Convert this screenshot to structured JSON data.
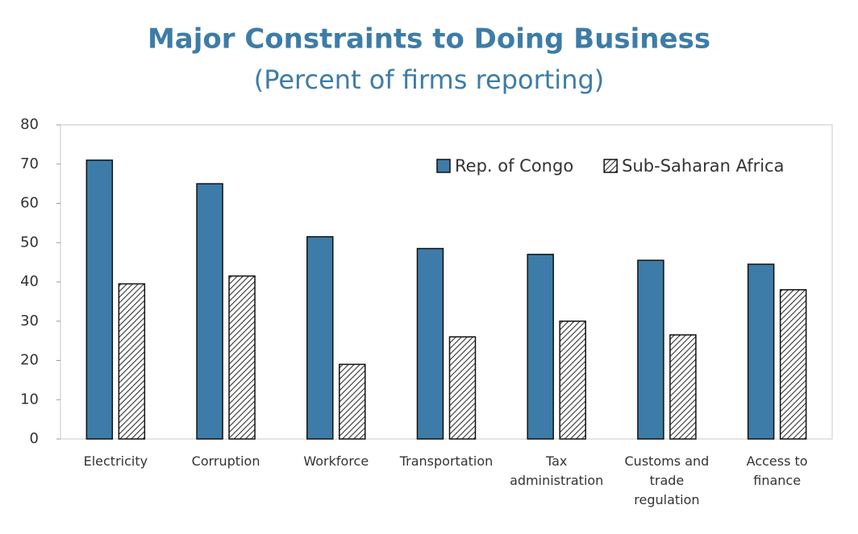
{
  "chart_data": {
    "type": "bar",
    "title": "Major Constraints to Doing Business",
    "subtitle": "(Percent of firms reporting)",
    "categories": [
      "Electricity",
      "Corruption",
      "Workforce",
      "Transportation",
      "Tax administration",
      "Customs and trade regulation",
      "Access to finance"
    ],
    "series": [
      {
        "name": "Rep. of Congo",
        "color": "#3d7ca8",
        "values": [
          71,
          65,
          51.5,
          48.5,
          47,
          45.5,
          44.5
        ]
      },
      {
        "name": "Sub-Saharan Africa",
        "color": "#333333",
        "pattern": "hatch",
        "values": [
          39.5,
          41.5,
          19,
          26,
          30,
          26.5,
          38
        ]
      }
    ],
    "ylim": [
      0,
      80
    ],
    "yticks": [
      0,
      10,
      20,
      30,
      40,
      50,
      60,
      70,
      80
    ],
    "grid": false,
    "legend": "top-right"
  }
}
